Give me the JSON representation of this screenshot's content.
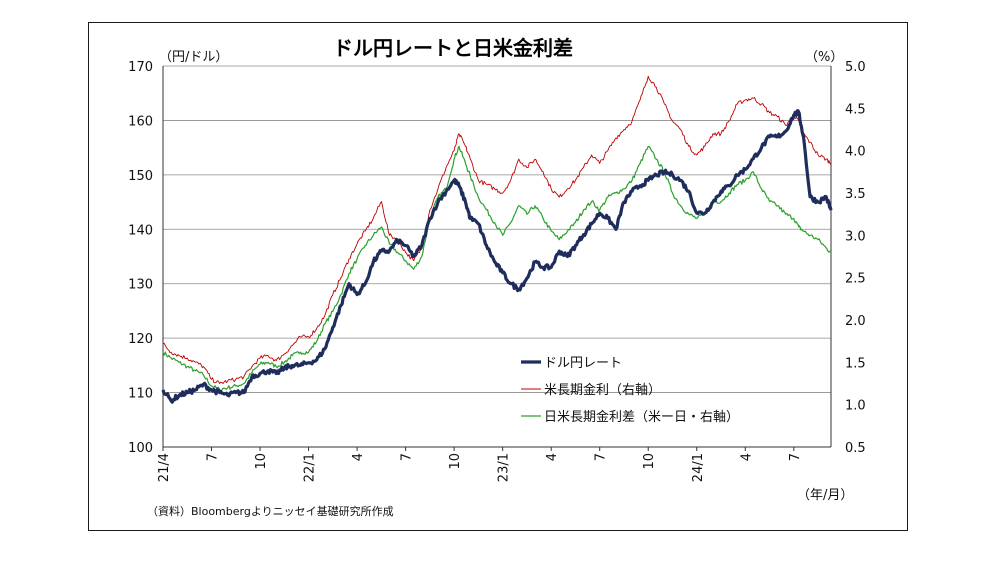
{
  "chart_data": {
    "type": "line",
    "title": "ドル円レートと日米金利差",
    "left_unit": "（円/ドル）",
    "right_unit": "（%）",
    "x_unit": "（年/月）",
    "source_note": "（資料）Bloombergよりニッセイ基礎研究所作成",
    "y_left": {
      "min": 100,
      "max": 170,
      "ticks": [
        100,
        110,
        120,
        130,
        140,
        150,
        160,
        170
      ]
    },
    "y_right": {
      "min": 0.5,
      "max": 5.0,
      "ticks": [
        "0.5",
        "1.0",
        "1.5",
        "2.0",
        "2.5",
        "3.0",
        "3.5",
        "4.0",
        "4.5",
        "5.0"
      ]
    },
    "x_ticks": [
      {
        "label": "21/4",
        "t": 0
      },
      {
        "label": "7",
        "t": 3
      },
      {
        "label": "10",
        "t": 6
      },
      {
        "label": "22/1",
        "t": 9
      },
      {
        "label": "4",
        "t": 12
      },
      {
        "label": "7",
        "t": 15
      },
      {
        "label": "10",
        "t": 18
      },
      {
        "label": "23/1",
        "t": 21
      },
      {
        "label": "4",
        "t": 24
      },
      {
        "label": "7",
        "t": 27
      },
      {
        "label": "10",
        "t": 30
      },
      {
        "label": "24/1",
        "t": 33
      },
      {
        "label": "4",
        "t": 36
      },
      {
        "label": "7",
        "t": 39
      }
    ],
    "x_range": [
      0,
      41.3
    ],
    "grid": true,
    "legend_position": "lower-right inside plot",
    "series": [
      {
        "name": "ドル円レート",
        "axis": "left",
        "color": "#1f2d5c",
        "width": 3.2,
        "t": [
          0,
          0.5,
          1,
          1.5,
          2,
          2.5,
          3,
          3.5,
          4,
          4.5,
          5,
          5.5,
          6,
          6.5,
          7,
          7.5,
          8,
          8.5,
          9,
          9.5,
          10,
          10.5,
          11,
          11.5,
          12,
          12.5,
          13,
          13.5,
          14,
          14.5,
          15,
          15.5,
          16,
          16.5,
          17,
          17.5,
          18,
          18.3,
          18.7,
          19,
          19.5,
          20,
          20.5,
          21,
          21.5,
          22,
          22.5,
          23,
          23.5,
          24,
          24.5,
          25,
          25.5,
          26,
          26.5,
          27,
          27.5,
          28,
          28.5,
          29,
          29.5,
          30,
          30.5,
          31,
          31.5,
          32,
          32.5,
          33,
          33.5,
          34,
          34.5,
          35,
          35.5,
          36,
          36.5,
          37,
          37.5,
          38,
          38.5,
          39,
          39.3,
          39.6,
          40,
          40.5,
          41,
          41.3
        ],
        "values": [
          110.5,
          108.5,
          109.5,
          110,
          110.5,
          111.5,
          110.5,
          110,
          109.5,
          110,
          110,
          113,
          113.5,
          114,
          113.5,
          114.5,
          115,
          115,
          115.5,
          116,
          118,
          122,
          126,
          130,
          128,
          130,
          134,
          136,
          136,
          138,
          137,
          135,
          137,
          142,
          145,
          147,
          149,
          148,
          145,
          142,
          141,
          137,
          134,
          132,
          130,
          129,
          131,
          134,
          133,
          133,
          136,
          135,
          137,
          139,
          141,
          143,
          142,
          140,
          145,
          147,
          148,
          149,
          150,
          150.5,
          150,
          149,
          147,
          143,
          143,
          145,
          147,
          148,
          150,
          151,
          153,
          155,
          157,
          157,
          158,
          161,
          161.5,
          157,
          146,
          145,
          146,
          143.5
        ]
      },
      {
        "name": "米長期金利（右軸）",
        "axis": "right",
        "color": "#c00000",
        "width": 0.9,
        "t": [
          0,
          0.5,
          1,
          1.5,
          2,
          2.5,
          3,
          3.5,
          4,
          4.5,
          5,
          5.5,
          6,
          6.5,
          7,
          7.5,
          8,
          8.5,
          9,
          9.5,
          10,
          10.5,
          11,
          11.5,
          12,
          12.5,
          13,
          13.5,
          14,
          14.5,
          15,
          15.5,
          16,
          16.5,
          17,
          17.5,
          18,
          18.3,
          18.7,
          19,
          19.5,
          20,
          20.5,
          21,
          21.5,
          22,
          22.5,
          23,
          23.5,
          24,
          24.5,
          25,
          25.5,
          26,
          26.5,
          27,
          27.5,
          28,
          28.5,
          29,
          29.5,
          30,
          30.5,
          31,
          31.5,
          32,
          32.5,
          33,
          33.5,
          34,
          34.5,
          35,
          35.5,
          36,
          36.5,
          37,
          37.5,
          38,
          38.5,
          39,
          39.3,
          39.6,
          40,
          40.5,
          41,
          41.3
        ],
        "values": [
          1.72,
          1.62,
          1.58,
          1.55,
          1.5,
          1.45,
          1.3,
          1.25,
          1.28,
          1.3,
          1.33,
          1.45,
          1.55,
          1.58,
          1.52,
          1.6,
          1.7,
          1.8,
          1.8,
          1.9,
          2.05,
          2.3,
          2.5,
          2.72,
          2.9,
          3.05,
          3.2,
          3.4,
          3.0,
          2.95,
          2.8,
          2.7,
          2.85,
          3.3,
          3.55,
          3.8,
          4.0,
          4.2,
          4.05,
          3.9,
          3.65,
          3.6,
          3.55,
          3.5,
          3.65,
          3.9,
          3.8,
          3.9,
          3.75,
          3.55,
          3.45,
          3.55,
          3.65,
          3.8,
          3.95,
          3.85,
          4.0,
          4.15,
          4.25,
          4.35,
          4.6,
          4.88,
          4.75,
          4.55,
          4.35,
          4.25,
          4.05,
          3.95,
          4.05,
          4.2,
          4.2,
          4.35,
          4.55,
          4.6,
          4.62,
          4.55,
          4.45,
          4.4,
          4.3,
          4.42,
          4.35,
          4.2,
          4.1,
          3.95,
          3.9,
          3.85
        ]
      },
      {
        "name": "日米長期金利差（米ー日・右軸）",
        "axis": "right",
        "color": "#2ca02c",
        "width": 1.2,
        "t": [
          0,
          0.5,
          1,
          1.5,
          2,
          2.5,
          3,
          3.5,
          4,
          4.5,
          5,
          5.5,
          6,
          6.5,
          7,
          7.5,
          8,
          8.5,
          9,
          9.5,
          10,
          10.5,
          11,
          11.5,
          12,
          12.5,
          13,
          13.5,
          14,
          14.5,
          15,
          15.5,
          16,
          16.5,
          17,
          17.5,
          18,
          18.3,
          18.7,
          19,
          19.5,
          20,
          20.5,
          21,
          21.5,
          22,
          22.5,
          23,
          23.5,
          24,
          24.5,
          25,
          25.5,
          26,
          26.5,
          27,
          27.5,
          28,
          28.5,
          29,
          29.5,
          30,
          30.5,
          31,
          31.5,
          32,
          32.5,
          33,
          33.5,
          34,
          34.5,
          35,
          35.5,
          36,
          36.5,
          37,
          37.5,
          38,
          38.5,
          39,
          39.3,
          39.6,
          40,
          40.5,
          41,
          41.3
        ],
        "values": [
          1.62,
          1.55,
          1.5,
          1.45,
          1.4,
          1.35,
          1.22,
          1.18,
          1.2,
          1.22,
          1.25,
          1.38,
          1.48,
          1.5,
          1.45,
          1.5,
          1.58,
          1.62,
          1.62,
          1.75,
          1.95,
          2.1,
          2.3,
          2.55,
          2.72,
          2.88,
          3.0,
          3.1,
          2.9,
          2.8,
          2.7,
          2.6,
          2.75,
          3.2,
          3.45,
          3.55,
          3.9,
          4.05,
          3.85,
          3.7,
          3.45,
          3.3,
          3.15,
          3.0,
          3.15,
          3.35,
          3.25,
          3.35,
          3.2,
          3.05,
          2.95,
          3.05,
          3.15,
          3.3,
          3.4,
          3.3,
          3.45,
          3.5,
          3.55,
          3.65,
          3.85,
          4.05,
          3.9,
          3.75,
          3.5,
          3.35,
          3.25,
          3.2,
          3.25,
          3.4,
          3.4,
          3.5,
          3.6,
          3.65,
          3.75,
          3.55,
          3.4,
          3.35,
          3.25,
          3.2,
          3.1,
          3.05,
          3.0,
          2.95,
          2.85,
          2.8
        ]
      }
    ]
  }
}
